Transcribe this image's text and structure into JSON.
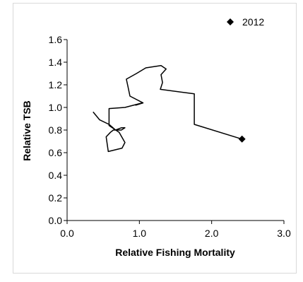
{
  "chart_data": {
    "type": "line",
    "title": "",
    "xlabel": "Relative Fishing Mortality",
    "ylabel": "Relative TSB",
    "xlim": [
      0.0,
      3.0
    ],
    "ylim": [
      0.0,
      1.6
    ],
    "x_ticks": [
      "0.0",
      "1.0",
      "2.0",
      "3.0"
    ],
    "y_ticks": [
      "0.0",
      "0.2",
      "0.4",
      "0.6",
      "0.8",
      "1.0",
      "1.2",
      "1.4",
      "1.6"
    ],
    "grid": false,
    "legend": {
      "position": "top-right",
      "entries": [
        "2012"
      ]
    },
    "series": [
      {
        "x": [
          0.36,
          0.45,
          0.58,
          0.67,
          0.75,
          0.8,
          0.75,
          0.64,
          0.6,
          0.54,
          0.57,
          0.76,
          0.8,
          0.72,
          0.58,
          0.58,
          0.8,
          1.04,
          0.95,
          1.05,
          0.87,
          0.84,
          0.82,
          0.96,
          1.09,
          1.3,
          1.37,
          1.3,
          1.32,
          1.29,
          1.76,
          1.76,
          2.42
        ],
        "y": [
          0.96,
          0.89,
          0.85,
          0.8,
          0.82,
          0.82,
          0.8,
          0.8,
          0.78,
          0.74,
          0.61,
          0.64,
          0.69,
          0.78,
          0.84,
          0.99,
          1.0,
          1.04,
          1.02,
          1.04,
          1.1,
          1.19,
          1.25,
          1.3,
          1.35,
          1.37,
          1.34,
          1.29,
          1.22,
          1.16,
          1.12,
          0.85,
          0.72
        ]
      }
    ],
    "highlight": {
      "label": "2012",
      "x": 2.42,
      "y": 0.72
    },
    "colors": {
      "line": "#000000",
      "marker": "#000000",
      "frame": "#d9d9d9"
    }
  }
}
